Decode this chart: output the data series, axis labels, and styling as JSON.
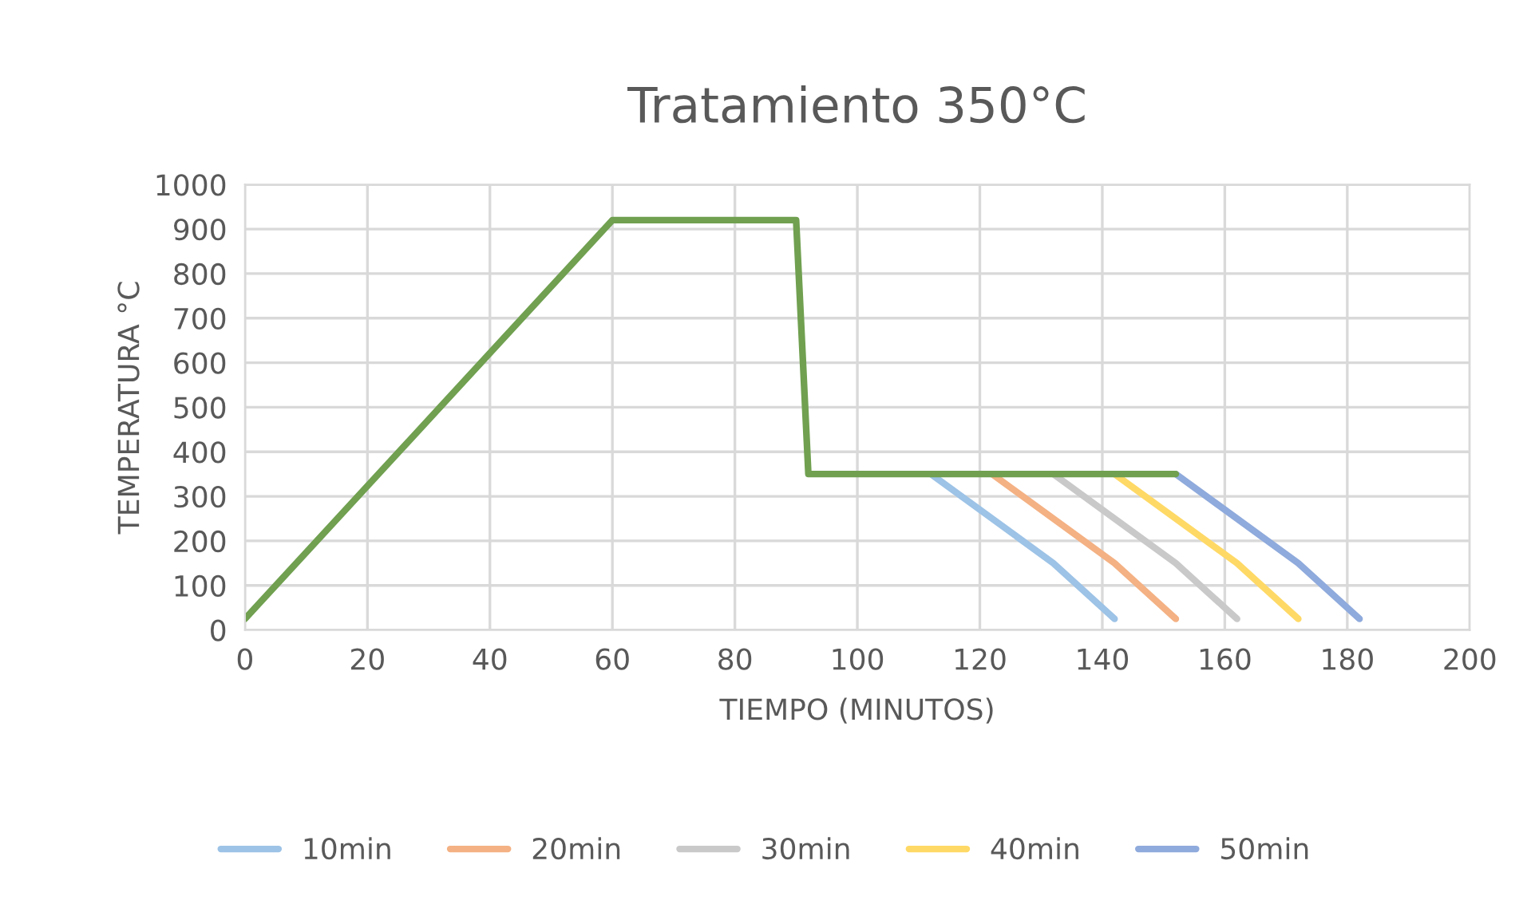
{
  "chart_data": {
    "type": "line",
    "title": "Tratamiento 350°C",
    "xlabel": "TIEMPO (MINUTOS)",
    "ylabel": "TEMPERATURA °C",
    "series": [
      {
        "name": "10min",
        "color": "#9dc3e6",
        "x": [
          112,
          132,
          142
        ],
        "values": [
          350,
          150,
          25
        ]
      },
      {
        "name": "20min",
        "color": "#f4b183",
        "x": [
          122,
          142,
          152
        ],
        "values": [
          350,
          150,
          25
        ]
      },
      {
        "name": "30min",
        "color": "#c9c9c9",
        "x": [
          132,
          152,
          162
        ],
        "values": [
          350,
          150,
          25
        ]
      },
      {
        "name": "40min",
        "color": "#ffd966",
        "x": [
          142,
          162,
          172
        ],
        "values": [
          350,
          150,
          25
        ]
      },
      {
        "name": "50min",
        "color": "#8faadc",
        "x": [
          152,
          172,
          182
        ],
        "values": [
          350,
          150,
          25
        ]
      },
      {
        "color": "#70a050",
        "x": [
          0,
          60,
          90,
          92,
          152
        ],
        "values": [
          25,
          920,
          920,
          350,
          350
        ]
      }
    ],
    "xlim": [
      0,
      200
    ],
    "xticks": [
      0,
      20,
      40,
      60,
      80,
      100,
      120,
      140,
      160,
      180,
      200
    ],
    "ylim": [
      0,
      1000
    ],
    "yticks": [
      0,
      100,
      200,
      300,
      400,
      500,
      600,
      700,
      800,
      900,
      1000
    ],
    "grid": true,
    "legend": "bottom",
    "marker": "none",
    "line_style": "solid"
  }
}
